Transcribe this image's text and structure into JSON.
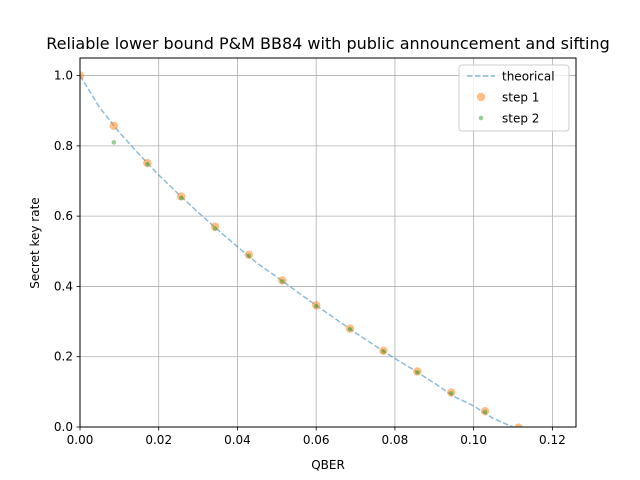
{
  "chart_data": {
    "type": "scatter",
    "title": "Reliable lower bound P&M BB84 with public announcement and sifting",
    "xlabel": "QBER",
    "ylabel": "Secret key rate",
    "xlim": [
      0,
      0.126
    ],
    "ylim": [
      0,
      1.05
    ],
    "xticks": [
      0.0,
      0.02,
      0.04,
      0.06,
      0.08,
      0.1,
      0.12
    ],
    "xtick_labels": [
      "0.00",
      "0.02",
      "0.04",
      "0.06",
      "0.08",
      "0.10",
      "0.12"
    ],
    "yticks": [
      0.0,
      0.2,
      0.4,
      0.6,
      0.8,
      1.0
    ],
    "ytick_labels": [
      "0.0",
      "0.2",
      "0.4",
      "0.6",
      "0.8",
      "1.0"
    ],
    "grid": true,
    "legend_position": "top-right",
    "series": [
      {
        "name": "theorical",
        "style": "dashed-line",
        "color": "#1f77b4",
        "x": [
          0,
          0.005,
          0.01,
          0.015,
          0.02,
          0.025,
          0.03,
          0.035,
          0.04,
          0.045,
          0.05,
          0.055,
          0.06,
          0.065,
          0.07,
          0.075,
          0.08,
          0.085,
          0.09,
          0.095,
          0.1,
          0.105,
          0.11
        ],
        "y": [
          1.0,
          0.909,
          0.838,
          0.776,
          0.717,
          0.663,
          0.611,
          0.561,
          0.513,
          0.466,
          0.427,
          0.386,
          0.346,
          0.307,
          0.268,
          0.231,
          0.195,
          0.161,
          0.125,
          0.087,
          0.06,
          0.024,
          0.0
        ]
      },
      {
        "name": "step 1",
        "style": "marker-large",
        "color": "#ff7f0e",
        "x": [
          0,
          0.0086,
          0.0171,
          0.0257,
          0.0343,
          0.0429,
          0.0514,
          0.06,
          0.0686,
          0.0771,
          0.0857,
          0.0943,
          0.1029,
          0.1114
        ],
        "y": [
          1.0,
          0.857,
          0.751,
          0.656,
          0.57,
          0.49,
          0.417,
          0.346,
          0.28,
          0.217,
          0.158,
          0.098,
          0.045,
          -0.002
        ]
      },
      {
        "name": "step 2",
        "style": "marker-small",
        "color": "#2ca02c",
        "x": [
          0.0086,
          0.0171,
          0.0257,
          0.0343,
          0.0429,
          0.0514,
          0.06,
          0.0686,
          0.0771,
          0.0857,
          0.0943,
          0.1029
        ],
        "y": [
          0.81,
          0.748,
          0.652,
          0.565,
          0.487,
          0.414,
          0.344,
          0.278,
          0.215,
          0.155,
          0.096,
          0.043
        ]
      }
    ]
  }
}
